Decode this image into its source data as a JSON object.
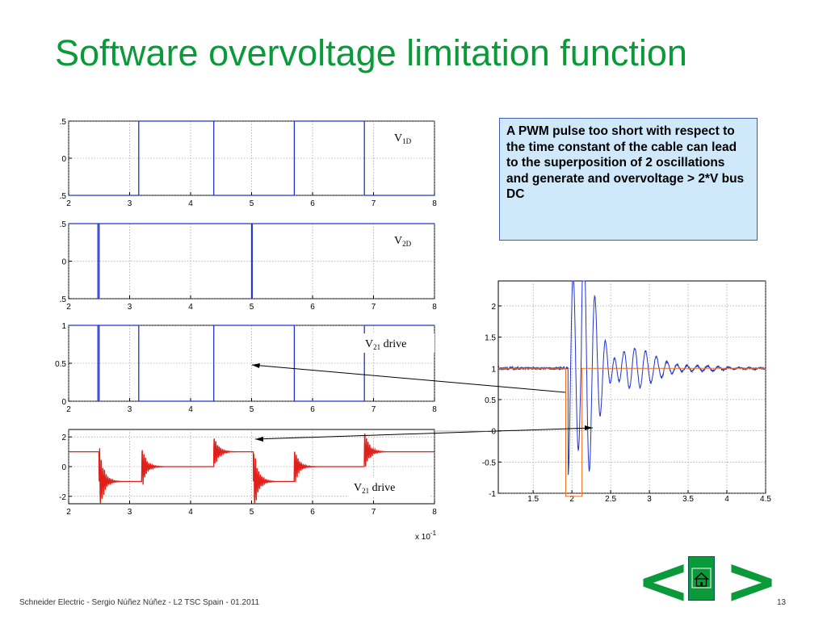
{
  "slide": {
    "title": "Software overvoltage limitation function",
    "callout": "A PWM pulse too short with respect to the time constant of the cable can lead to the superposition of 2 oscillations and generate and overvoltage > 2*V bus DC",
    "footer": "Schneider Electric - Sergio Núñez Núñez - L2 TSC Spain - 01.2011",
    "page_number": "13",
    "nav": {
      "prev_label": "<",
      "next_label": ">",
      "home_icon": "home-icon"
    },
    "colors": {
      "title": "#0b9a3a",
      "blue_trace": "#2233cc",
      "red_trace": "#e0201a",
      "orange_trace": "#f07020"
    }
  },
  "chart_data": [
    {
      "type": "line",
      "label": "V1D",
      "xlim": [
        2,
        8
      ],
      "ylim": [
        -0.5,
        0.5
      ],
      "x_ticks": [
        "2",
        "3",
        "4",
        "5",
        "6",
        "7",
        "8"
      ],
      "y_ticks": [
        ".5",
        "0",
        ".5"
      ],
      "grid": true,
      "series": [
        {
          "color": "#2233cc",
          "x": [
            2,
            3.15,
            3.15,
            4.38,
            4.38,
            5.7,
            5.7,
            6.85,
            6.85,
            8
          ],
          "y": [
            -0.5,
            -0.5,
            0.5,
            0.5,
            -0.5,
            -0.5,
            0.5,
            0.5,
            -0.5,
            -0.5
          ]
        }
      ]
    },
    {
      "type": "line",
      "label": "V2D",
      "xlim": [
        2,
        8
      ],
      "ylim": [
        -0.5,
        0.5
      ],
      "x_ticks": [
        "2",
        "3",
        "4",
        "5",
        "6",
        "7",
        "8"
      ],
      "y_ticks": [
        ".5",
        "0",
        ".5"
      ],
      "grid": true,
      "series": [
        {
          "color": "#2233cc",
          "x": [
            2,
            2.48,
            2.48,
            2.5,
            2.5,
            5,
            5,
            5.01,
            5.01,
            8
          ],
          "y": [
            0.5,
            0.5,
            -0.5,
            -0.5,
            0.5,
            0.5,
            -0.5,
            -0.5,
            0.5,
            0.5
          ]
        }
      ]
    },
    {
      "type": "line",
      "label": "V21 drive",
      "xlim": [
        2,
        8
      ],
      "ylim": [
        0,
        1
      ],
      "x_ticks": [
        "2",
        "3",
        "4",
        "5",
        "6",
        "7",
        "8"
      ],
      "y_ticks": [
        "1",
        "0.5",
        "0"
      ],
      "grid": true,
      "series": [
        {
          "color": "#2233cc",
          "x": [
            2,
            2.48,
            2.48,
            2.5,
            2.5,
            3.15,
            3.15,
            4.38,
            4.38,
            5.7,
            5.7,
            6.85,
            6.85,
            8
          ],
          "y": [
            1,
            1,
            0,
            0,
            1,
            1,
            0,
            0,
            1,
            1,
            0,
            0,
            1,
            1
          ]
        }
      ]
    },
    {
      "type": "line",
      "label": "V21 drive",
      "xlim": [
        2,
        8
      ],
      "ylim": [
        -2.5,
        2.5
      ],
      "x_ticks": [
        "2",
        "3",
        "4",
        "5",
        "6",
        "7",
        "8"
      ],
      "y_ticks": [
        "2",
        "0",
        "-2"
      ],
      "x_multiplier": "x 10^-1",
      "grid": true,
      "levels": [
        {
          "from": 2.0,
          "to": 2.5,
          "y": 1
        },
        {
          "from": 2.5,
          "to": 3.2,
          "y": -1
        },
        {
          "from": 3.2,
          "to": 4.38,
          "y": 0
        },
        {
          "from": 4.38,
          "to": 5.03,
          "y": 1
        },
        {
          "from": 5.03,
          "to": 5.7,
          "y": -1
        },
        {
          "from": 5.7,
          "to": 6.85,
          "y": 0
        },
        {
          "from": 6.85,
          "to": 8.0,
          "y": 1
        }
      ],
      "ringing_events": [
        {
          "x": 2.5,
          "amp": 2.3
        },
        {
          "x": 3.2,
          "amp": 1.4
        },
        {
          "x": 4.38,
          "amp": 1.2
        },
        {
          "x": 5.03,
          "amp": 2.3
        },
        {
          "x": 5.7,
          "amp": 1.2
        },
        {
          "x": 6.85,
          "amp": 1.5
        }
      ],
      "series": [
        {
          "color": "#e0201a"
        }
      ]
    },
    {
      "type": "line",
      "xlim": [
        1.05,
        4.5
      ],
      "ylim": [
        -1,
        2.4
      ],
      "x_ticks": [
        "1.5",
        "2",
        "2.5",
        "3",
        "3.5",
        "4",
        "4.5"
      ],
      "y_ticks": [
        "2",
        "1.5",
        "1",
        "0.5",
        "0",
        "-0.5",
        "-1"
      ],
      "grid": true,
      "series": [
        {
          "name": "",
          "color": "#2233cc",
          "pulse_edges": [
            1.95,
            2.12
          ],
          "peak": 2.2,
          "min": -0.8,
          "settle": 1.0
        },
        {
          "name": "",
          "color": "#f07020",
          "x": [
            1.05,
            1.92,
            1.92,
            2.13,
            2.13,
            4.5
          ],
          "y": [
            1,
            1,
            -1.05,
            -1.05,
            1,
            1
          ]
        }
      ]
    }
  ]
}
